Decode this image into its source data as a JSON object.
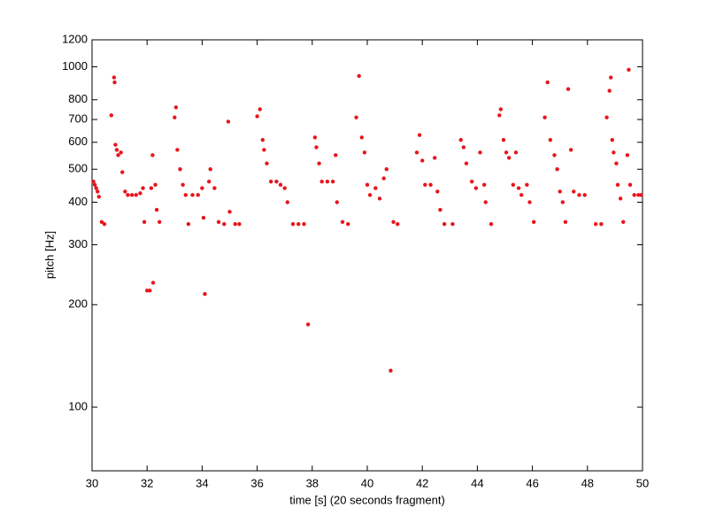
{
  "chart_data": {
    "type": "scatter",
    "x_label": "time [s] (20 seconds fragment)",
    "y_label": "pitch [Hz]",
    "color": "#e8141a",
    "yscale": "log",
    "xlim": [
      30,
      50
    ],
    "xticks": [
      30,
      32,
      34,
      36,
      38,
      40,
      42,
      44,
      46,
      48,
      50
    ],
    "ylim": [
      65,
      1200
    ],
    "yticks": [
      100,
      200,
      300,
      400,
      500,
      600,
      700,
      800,
      1000,
      1200
    ],
    "x": [
      30.05,
      30.1,
      30.15,
      30.2,
      30.25,
      30.35,
      30.45,
      30.7,
      30.8,
      30.82,
      30.85,
      30.9,
      30.95,
      31.05,
      31.1,
      31.2,
      31.3,
      31.45,
      31.6,
      31.75,
      31.85,
      31.9,
      32.0,
      32.1,
      32.15,
      32.2,
      32.22,
      32.3,
      32.35,
      32.45,
      33.0,
      33.05,
      33.1,
      33.2,
      33.3,
      33.4,
      33.5,
      33.65,
      33.85,
      34.0,
      34.05,
      34.1,
      34.25,
      34.3,
      34.45,
      34.6,
      34.8,
      34.95,
      35.0,
      35.2,
      35.35,
      36.0,
      36.1,
      36.2,
      36.25,
      36.35,
      36.5,
      36.7,
      36.85,
      37.0,
      37.1,
      37.3,
      37.5,
      37.7,
      37.85,
      38.1,
      38.15,
      38.25,
      38.35,
      38.55,
      38.75,
      38.85,
      38.9,
      39.1,
      39.3,
      39.6,
      39.7,
      39.8,
      39.9,
      40.0,
      40.1,
      40.3,
      40.45,
      40.6,
      40.7,
      40.85,
      40.95,
      41.1,
      41.8,
      41.9,
      42.0,
      42.1,
      42.3,
      42.45,
      42.55,
      42.65,
      42.8,
      43.1,
      43.4,
      43.5,
      43.6,
      43.8,
      43.95,
      44.1,
      44.25,
      44.3,
      44.5,
      44.8,
      44.85,
      44.95,
      45.05,
      45.15,
      45.3,
      45.4,
      45.5,
      45.6,
      45.8,
      45.9,
      46.05,
      46.45,
      46.55,
      46.65,
      46.8,
      46.9,
      47.0,
      47.1,
      47.2,
      47.3,
      47.4,
      47.5,
      47.7,
      47.9,
      48.3,
      48.5,
      48.7,
      48.8,
      48.85,
      48.9,
      48.95,
      49.05,
      49.1,
      49.2,
      49.3,
      49.45,
      49.5,
      49.55,
      49.7,
      49.85,
      49.95
    ],
    "values": [
      460,
      450,
      440,
      430,
      415,
      350,
      345,
      720,
      930,
      900,
      590,
      570,
      550,
      560,
      490,
      430,
      420,
      420,
      420,
      425,
      440,
      350,
      220,
      220,
      440,
      550,
      232,
      450,
      380,
      350,
      710,
      760,
      570,
      500,
      450,
      420,
      345,
      420,
      420,
      440,
      360,
      215,
      460,
      500,
      440,
      350,
      345,
      690,
      375,
      345,
      345,
      715,
      750,
      610,
      570,
      520,
      460,
      460,
      450,
      440,
      400,
      345,
      345,
      345,
      175,
      620,
      580,
      520,
      460,
      460,
      460,
      550,
      400,
      350,
      345,
      710,
      940,
      620,
      560,
      450,
      420,
      440,
      410,
      470,
      500,
      128,
      350,
      345,
      560,
      630,
      530,
      450,
      450,
      540,
      430,
      380,
      345,
      345,
      610,
      580,
      520,
      460,
      440,
      560,
      450,
      400,
      345,
      720,
      750,
      610,
      560,
      540,
      450,
      560,
      440,
      420,
      450,
      400,
      350,
      710,
      900,
      610,
      550,
      500,
      430,
      400,
      350,
      860,
      570,
      430,
      420,
      420,
      345,
      345,
      710,
      850,
      930,
      610,
      560,
      520,
      450,
      410,
      350,
      550,
      980,
      450,
      420,
      420,
      420
    ]
  }
}
